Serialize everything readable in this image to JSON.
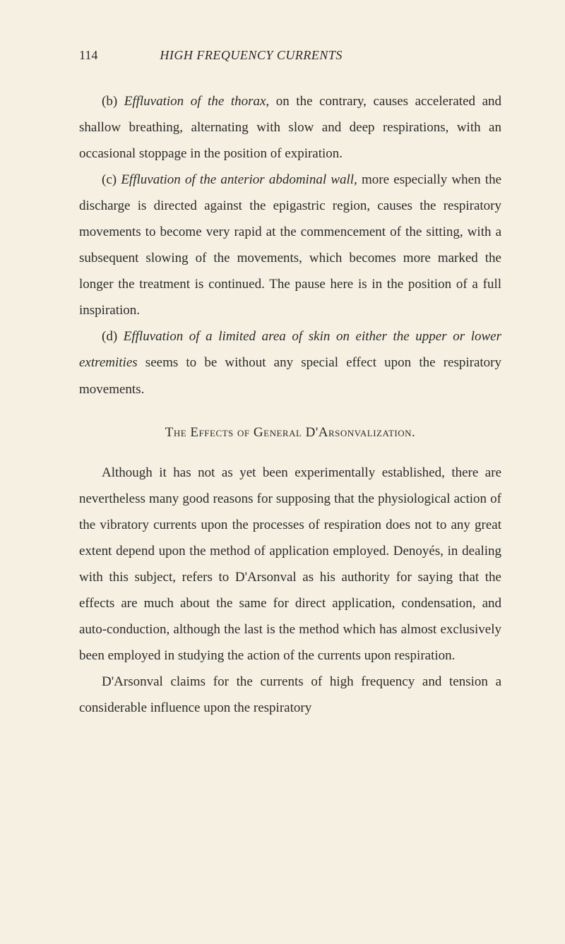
{
  "page_number": "114",
  "running_header": "HIGH FREQUENCY CURRENTS",
  "paragraphs": {
    "p1_label": "(b)",
    "p1_italic": "Effluvation of the thorax,",
    "p1_rest": " on the contrary, causes accelerated and shallow breathing, alternating with slow and deep respirations, with an occasional stoppage in the position of expiration.",
    "p2_label": "(c)",
    "p2_italic": "Effluvation of the anterior abdominal wall,",
    "p2_rest": " more especially when the discharge is directed against the epigastric region, causes the respiratory movements to become very rapid at the commencement of the sitting, with a subsequent slowing of the movements, which becomes more marked the longer the treatment is continued. The pause here is in the position of a full inspiration.",
    "p3_label": "(d)",
    "p3_italic": "Effluvation of a limited area of skin on either the upper or lower extremities",
    "p3_rest": " seems to be without any special effect upon the respiratory movements.",
    "heading": "The Effects of General D'Arsonvalization.",
    "p4": "Although it has not as yet been experimentally established, there are nevertheless many good reasons for supposing that the physiological action of the vibratory currents upon the processes of respiration does not to any great extent depend upon the method of application employed. Denoyés, in dealing with this subject, refers to D'Arsonval as his authority for saying that the effects are much about the same for direct application, condensation, and auto-conduction, although the last is the method which has almost exclusively been employed in studying the action of the currents upon respiration.",
    "p5": "D'Arsonval claims for the currents of high frequency and tension a considerable influence upon the respiratory"
  },
  "colors": {
    "background": "#f5f0e1",
    "text": "#2a2a2a"
  },
  "typography": {
    "body_fontsize": 19,
    "header_fontsize": 18,
    "line_height": 1.95,
    "font_family": "Georgia, Times New Roman, serif"
  }
}
